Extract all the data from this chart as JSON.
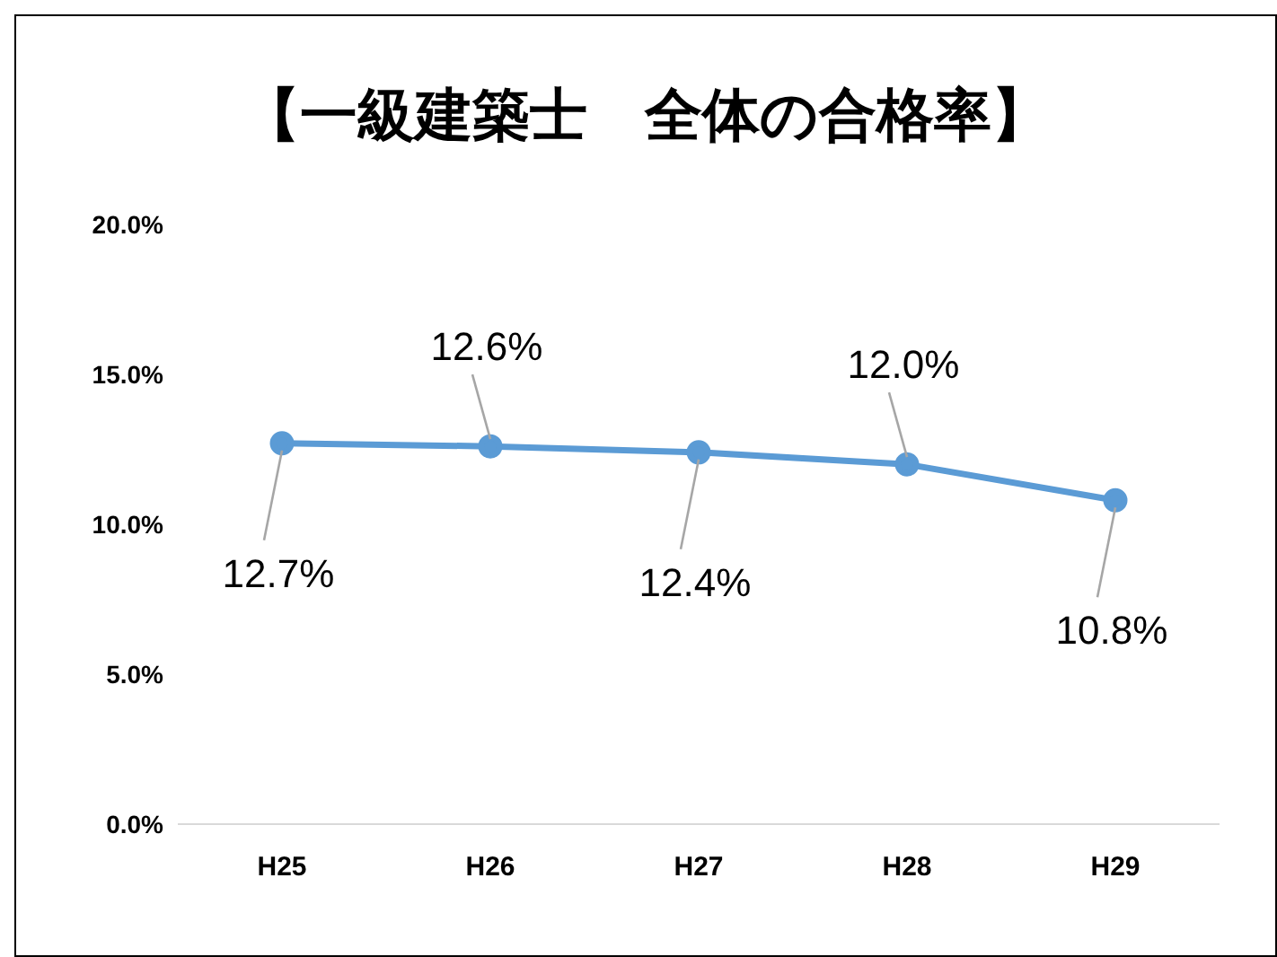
{
  "chart_data": {
    "type": "line",
    "title": "【一級建築士　全体の合格率】",
    "categories": [
      "H25",
      "H26",
      "H27",
      "H28",
      "H29"
    ],
    "series": [
      {
        "color": "#5b9bd5",
        "values": [
          12.7,
          12.6,
          12.4,
          12.0,
          10.8
        ],
        "value_labels": [
          "12.7%",
          "12.6%",
          "12.4%",
          "12.0%",
          "10.8%"
        ]
      }
    ],
    "ylim": [
      0,
      20
    ],
    "yticks": [
      {
        "value": 0,
        "label": "0.0%"
      },
      {
        "value": 5,
        "label": "5.0%"
      },
      {
        "value": 10,
        "label": "10.0%"
      },
      {
        "value": 15,
        "label": "15.0%"
      },
      {
        "value": 20,
        "label": "20.0%"
      }
    ],
    "marker": "circle",
    "line_style": "solid",
    "grid": false,
    "legend": false
  }
}
